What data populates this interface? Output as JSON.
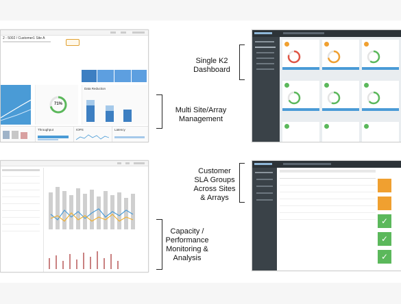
{
  "captions": {
    "single_dashboard": [
      "Single K2",
      "Dashboard"
    ],
    "multi_site": [
      "Multi Site/Array",
      "Management"
    ],
    "customer_sla": [
      "Customer",
      "SLA Groups",
      "Across Sites",
      "& Arrays"
    ],
    "capacity": [
      "Capacity /",
      "Performance",
      "Monitoring &",
      "Analysis"
    ]
  },
  "multi_site_screen": {
    "header_title": "2 - 5002 / Customer1 Site A",
    "gauge_value": "71%",
    "panels": [
      "Data Reduction",
      "Throughput",
      "IOPS",
      "Latency"
    ]
  },
  "colors": {
    "brand_dark": "#2c3338",
    "accent_blue": "#4a9bd6",
    "ok_green": "#5bb85b",
    "warn_orange": "#f0a030",
    "err_red": "#e05545"
  }
}
